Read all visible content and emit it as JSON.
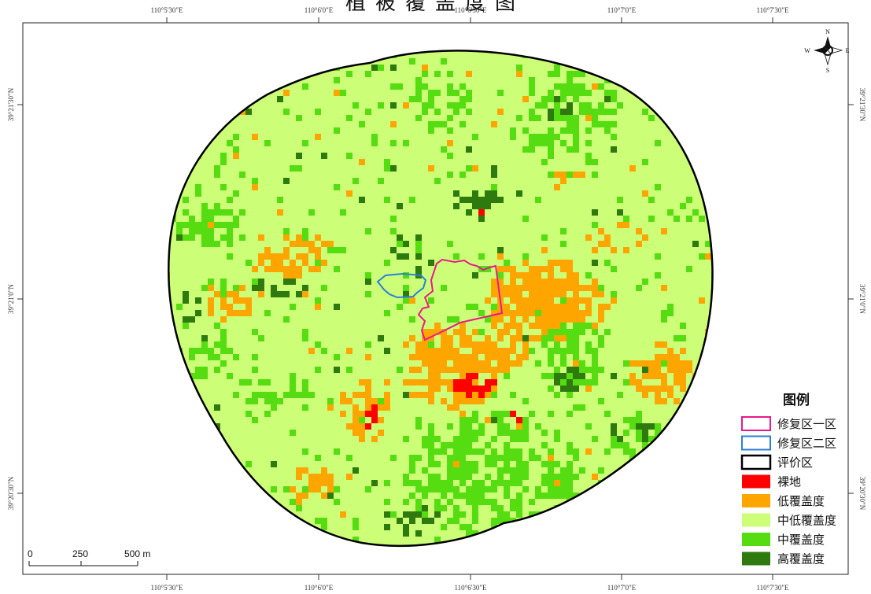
{
  "title": "植被覆盖度图",
  "coords": {
    "top": [
      "110°5'30\"E",
      "110°6'0\"E",
      "110°6'30\"E",
      "110°7'0\"E",
      "110°7'30\"E"
    ],
    "bottom": [
      "110°5'30\"E",
      "110°6'0\"E",
      "110°6'30\"E",
      "110°7'0\"E",
      "110°7'30\"E"
    ],
    "left": [
      "39°21'30\"N",
      "39°21'0\"N",
      "39°20'30\"N"
    ],
    "right": [
      "39°21'30\"N",
      "39°21'0\"N",
      "39°20'30\"N"
    ]
  },
  "compass": {
    "n": "N",
    "s": "S",
    "e": "E",
    "w": "W"
  },
  "scale_bar": {
    "ticks": [
      "0",
      "250",
      "500 m"
    ]
  },
  "legend": {
    "title": "图例",
    "items": [
      {
        "label": "修复区一区",
        "type": "outline",
        "color": "#e8198b"
      },
      {
        "label": "修复区二区",
        "type": "outline",
        "color": "#2c7fd6"
      },
      {
        "label": "评价区",
        "type": "outline",
        "color": "#000000"
      },
      {
        "label": "裸地",
        "type": "fill",
        "color": "#ff0000"
      },
      {
        "label": "低覆盖度",
        "type": "fill",
        "color": "#ffa500"
      },
      {
        "label": "中低覆盖度",
        "type": "fill",
        "color": "#ccff77"
      },
      {
        "label": "中覆盖度",
        "type": "fill",
        "color": "#55dd11"
      },
      {
        "label": "高覆盖度",
        "type": "fill",
        "color": "#2e7a0e"
      }
    ]
  }
}
